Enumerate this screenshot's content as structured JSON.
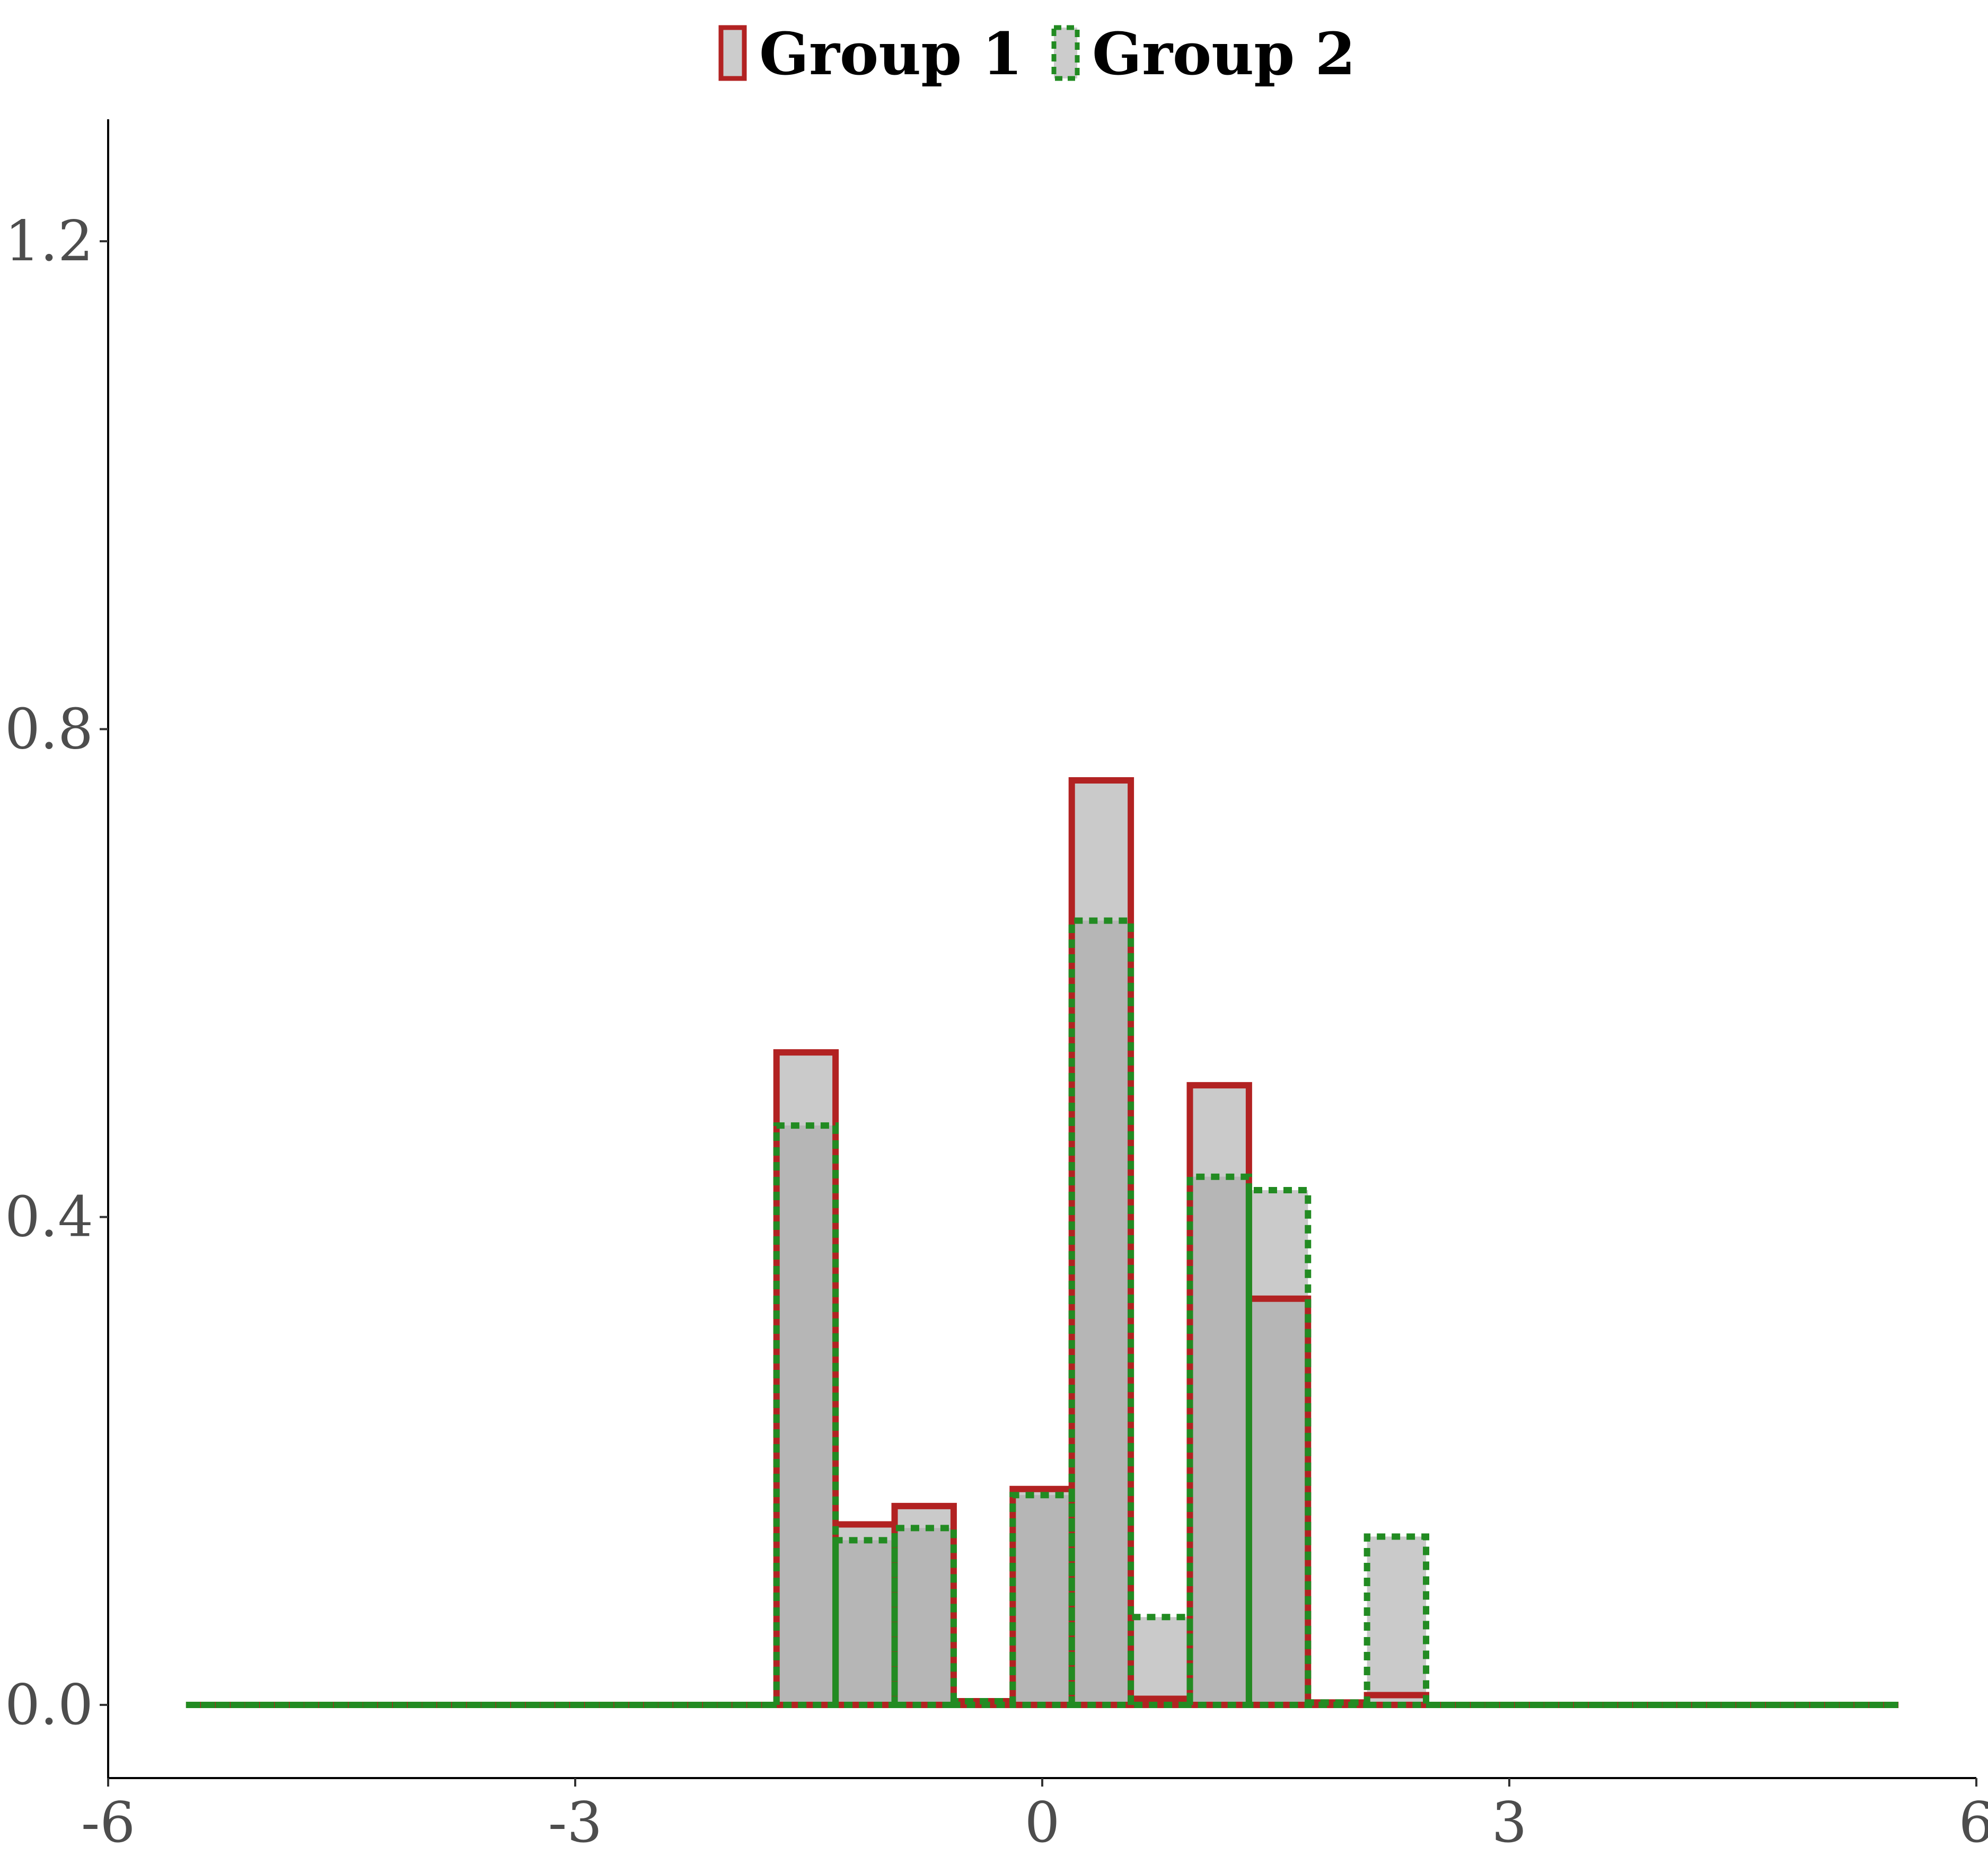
{
  "chart_data": {
    "type": "bar",
    "subtype": "overlaid histogram",
    "title": "",
    "xlabel": "",
    "ylabel": "",
    "xlim": [
      -6,
      6
    ],
    "ylim": [
      -0.06,
      1.3
    ],
    "grid": false,
    "legend_position": "top",
    "x_ticks": [
      {
        "value": -6,
        "label": "-6"
      },
      {
        "value": -3,
        "label": "-3"
      },
      {
        "value": 0,
        "label": "0"
      },
      {
        "value": 3,
        "label": "3"
      },
      {
        "value": 6,
        "label": "6"
      }
    ],
    "y_ticks": [
      {
        "value": 0.0,
        "label": "0.0"
      },
      {
        "value": 0.4,
        "label": "0.4"
      },
      {
        "value": 0.8,
        "label": "0.8"
      },
      {
        "value": 1.2,
        "label": "1.2"
      }
    ],
    "bins": {
      "range": [
        -5.5,
        5.5
      ],
      "count": 29
    },
    "series": [
      {
        "name": "Group 1",
        "color": "#b22222",
        "line": "solid",
        "fill": "#b0b0b0",
        "values": [
          0,
          0,
          0,
          0,
          0,
          0,
          0,
          0,
          0,
          0,
          0.535,
          0.148,
          0.163,
          0.003,
          0.177,
          0.758,
          0.005,
          0.508,
          0.333,
          0.002,
          0.008,
          0,
          0,
          0,
          0,
          0,
          0,
          0,
          0
        ]
      },
      {
        "name": "Group 2",
        "color": "#228b22",
        "line": "dashed",
        "fill": "#b0b0b0",
        "values": [
          0,
          0,
          0,
          0,
          0,
          0,
          0,
          0,
          0,
          0,
          0.475,
          0.135,
          0.145,
          0.003,
          0.172,
          0.643,
          0.072,
          0.433,
          0.422,
          0.002,
          0.138,
          0,
          0,
          0,
          0,
          0,
          0,
          0,
          0
        ]
      }
    ]
  }
}
